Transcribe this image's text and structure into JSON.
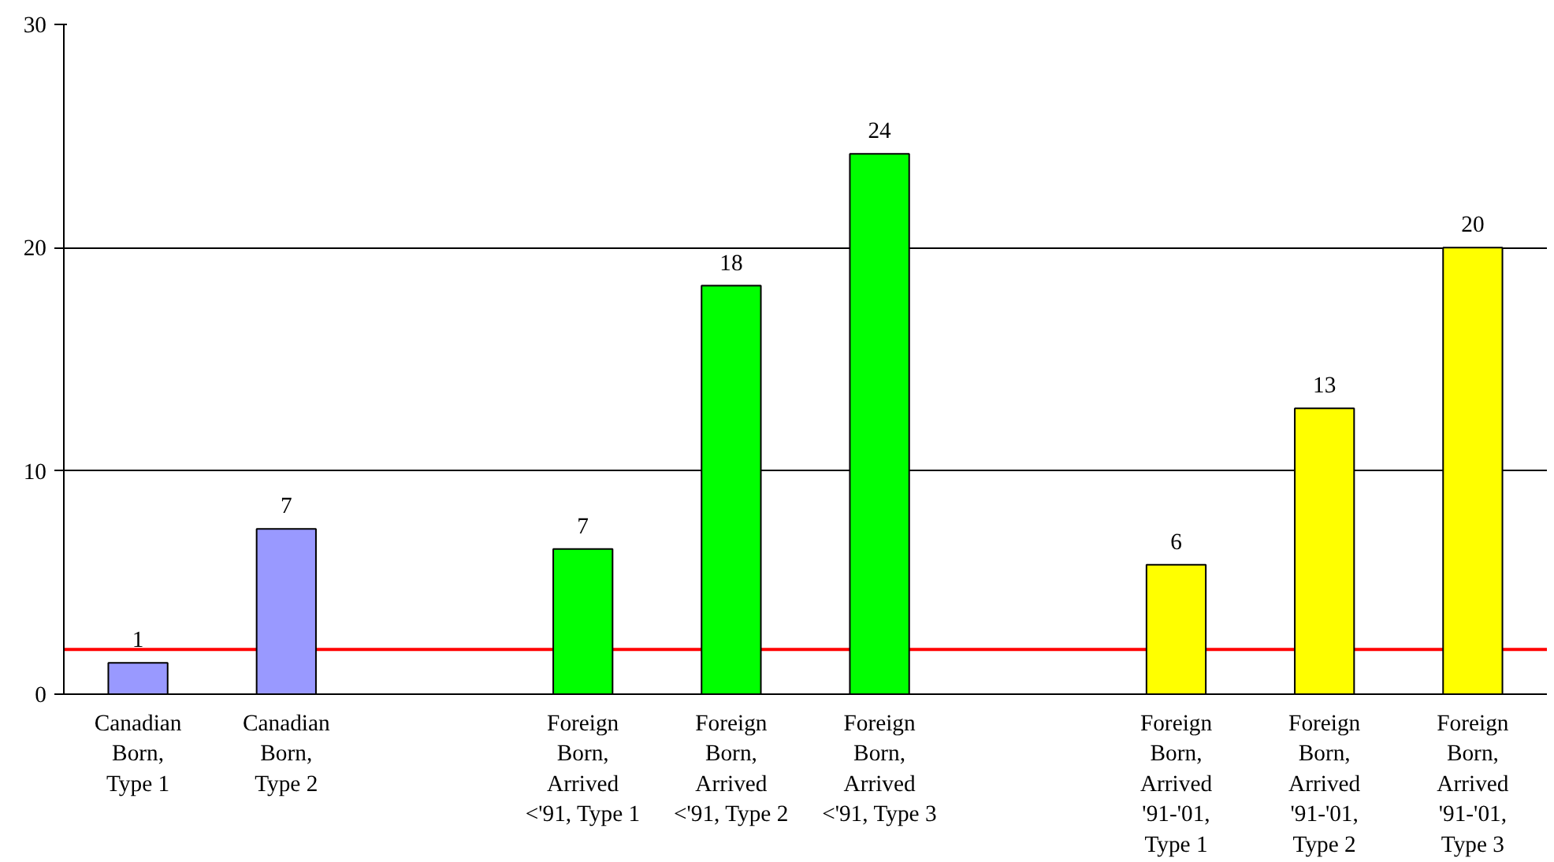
{
  "chart_data": {
    "type": "bar",
    "categories": [
      "Canadian\nBorn,\nType 1",
      "Canadian\nBorn,\nType 2",
      null,
      "Foreign\nBorn,\nArrived\n<'91, Type 1",
      "Foreign\nBorn,\nArrived\n<'91, Type 2",
      "Foreign\nBorn,\nArrived\n<'91, Type 3",
      null,
      "Foreign\nBorn,\nArrived\n'91-'01,\nType 1",
      "Foreign\nBorn,\nArrived\n'91-'01,\nType 2",
      "Foreign\nBorn,\nArrived\n'91-'01,\nType 3"
    ],
    "values": [
      1.4,
      7.4,
      null,
      6.5,
      18.3,
      24.2,
      null,
      5.8,
      12.8,
      20.0
    ],
    "value_labels": [
      "1",
      "7",
      null,
      "7",
      "18",
      "24",
      null,
      "6",
      "13",
      "20"
    ],
    "colors": [
      "#9999ff",
      "#9999ff",
      null,
      "#00ff00",
      "#00ff00",
      "#00ff00",
      null,
      "#ffff00",
      "#ffff00",
      "#ffff00"
    ],
    "ylim": [
      0,
      30
    ],
    "yticks": [
      0,
      10,
      20,
      30
    ],
    "grid": "y",
    "ref_lines": [
      {
        "axis": "y",
        "value": 2,
        "color": "#ff0000"
      }
    ]
  }
}
